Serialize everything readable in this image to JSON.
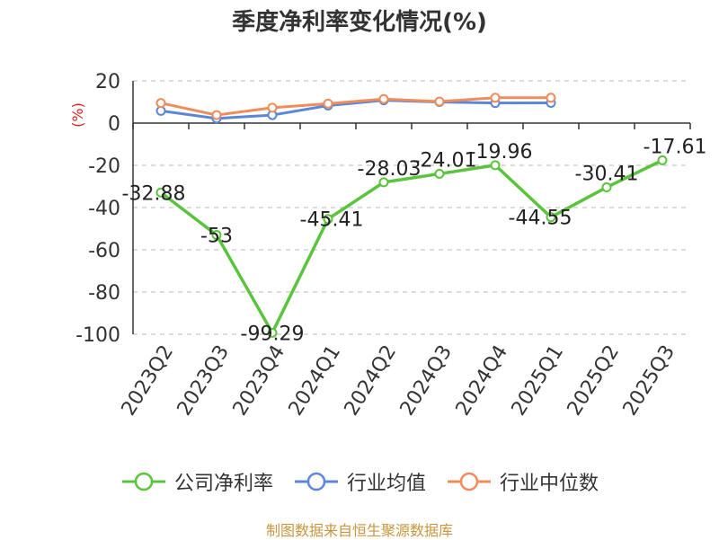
{
  "title": "季度净利率变化情况(%)",
  "source": "制图数据来自恒生聚源数据库",
  "chart_data": {
    "type": "line",
    "categories": [
      "2023Q2",
      "2023Q3",
      "2023Q4",
      "2024Q1",
      "2024Q2",
      "2024Q3",
      "2024Q4",
      "2025Q1",
      "2025Q2",
      "2025Q3"
    ],
    "ylabel": "(%)",
    "ylim": [
      -100,
      20
    ],
    "yticks": [
      20,
      0,
      -20,
      -40,
      -60,
      -80,
      -100
    ],
    "grid": true,
    "legend_position": "bottom",
    "series": [
      {
        "name": "公司净利率",
        "color": "#5ac43d",
        "values": [
          -32.88,
          -53,
          -99.29,
          -45.41,
          -28.03,
          -24.01,
          -19.96,
          -44.55,
          -30.41,
          -17.61
        ],
        "labels": [
          "-32.88",
          "-53",
          "-99.29",
          "-45.41",
          "-28.03",
          "-24.01",
          "-19.96",
          "-44.55",
          "-30.41",
          "-17.61"
        ]
      },
      {
        "name": "行业均值",
        "color": "#5b87db",
        "values": [
          5.8,
          2.2,
          3.8,
          8.3,
          10.8,
          10.0,
          9.5,
          9.6,
          null,
          null
        ]
      },
      {
        "name": "行业中位数",
        "color": "#f08c5a",
        "values": [
          9.5,
          3.8,
          7.3,
          9.2,
          11.4,
          10.2,
          12.0,
          12.0,
          null,
          null
        ]
      }
    ]
  }
}
